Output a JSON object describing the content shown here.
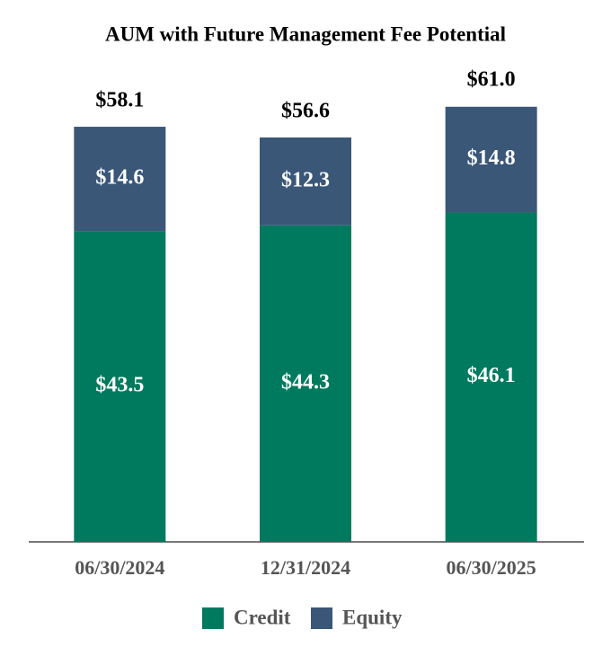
{
  "chart_data": {
    "type": "stacked-bar",
    "title": "AUM with Future Management Fee Potential",
    "categories": [
      "06/30/2024",
      "12/31/2024",
      "06/30/2025"
    ],
    "series": [
      {
        "name": "Credit",
        "color": "#007a5e",
        "values": [
          43.5,
          44.3,
          46.1
        ],
        "value_labels": [
          "$43.5",
          "$44.3",
          "$46.1"
        ]
      },
      {
        "name": "Equity",
        "color": "#3a5778",
        "values": [
          14.6,
          12.3,
          14.8
        ],
        "value_labels": [
          "$14.6",
          "$12.3",
          "$14.8"
        ]
      }
    ],
    "totals": [
      58.1,
      56.6,
      61.0
    ],
    "total_labels": [
      "$58.1",
      "$56.6",
      "$61.0"
    ],
    "legend": "bottom"
  }
}
